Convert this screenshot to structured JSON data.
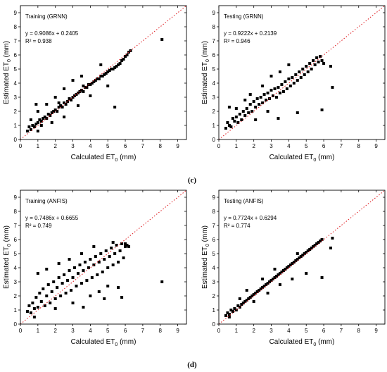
{
  "chart_data": [
    {
      "type": "scatter",
      "panel_title": "Training (GRNN)",
      "equation": "y = 0.9086x + 0.2405",
      "r2": "R² = 0.938",
      "slope": 0.9086,
      "intercept": 0.2405,
      "xlabel": "Calculated ET",
      "ylabel": "Estimated ET",
      "label_subscript": "0",
      "label_unit": "(mm)",
      "xlim": [
        0,
        9.5
      ],
      "ylim": [
        0,
        9.5
      ],
      "ticks": [
        "0",
        "1",
        "2",
        "3",
        "4",
        "5",
        "6",
        "7",
        "8",
        "9"
      ],
      "reference_line": "1:1",
      "grid": false,
      "points": [
        [
          0.4,
          0.6
        ],
        [
          0.5,
          0.9
        ],
        [
          0.6,
          0.7
        ],
        [
          0.7,
          1.0
        ],
        [
          0.8,
          0.9
        ],
        [
          0.9,
          1.1
        ],
        [
          1.0,
          1.2
        ],
        [
          1.1,
          1.4
        ],
        [
          1.2,
          1.3
        ],
        [
          1.3,
          1.5
        ],
        [
          1.4,
          1.6
        ],
        [
          1.5,
          1.5
        ],
        [
          1.6,
          1.8
        ],
        [
          1.7,
          1.7
        ],
        [
          1.8,
          1.9
        ],
        [
          1.9,
          2.0
        ],
        [
          2.0,
          2.1
        ],
        [
          2.1,
          2.0
        ],
        [
          2.2,
          2.3
        ],
        [
          2.3,
          2.4
        ],
        [
          2.4,
          2.3
        ],
        [
          2.5,
          2.6
        ],
        [
          2.6,
          2.5
        ],
        [
          2.7,
          2.7
        ],
        [
          2.8,
          2.9
        ],
        [
          2.9,
          2.8
        ],
        [
          3.0,
          3.0
        ],
        [
          3.1,
          3.1
        ],
        [
          3.2,
          3.2
        ],
        [
          3.3,
          3.3
        ],
        [
          3.4,
          3.4
        ],
        [
          3.5,
          3.5
        ],
        [
          3.6,
          3.4
        ],
        [
          3.7,
          3.7
        ],
        [
          3.8,
          3.7
        ],
        [
          3.9,
          3.9
        ],
        [
          4.0,
          3.9
        ],
        [
          4.1,
          4.0
        ],
        [
          4.2,
          4.1
        ],
        [
          4.3,
          4.2
        ],
        [
          4.4,
          4.3
        ],
        [
          4.5,
          4.3
        ],
        [
          4.6,
          4.5
        ],
        [
          4.7,
          4.5
        ],
        [
          4.8,
          4.6
        ],
        [
          4.9,
          4.7
        ],
        [
          5.0,
          4.8
        ],
        [
          5.1,
          4.9
        ],
        [
          5.2,
          5.0
        ],
        [
          5.3,
          5.0
        ],
        [
          5.4,
          5.1
        ],
        [
          5.5,
          5.2
        ],
        [
          5.6,
          5.3
        ],
        [
          5.7,
          5.4
        ],
        [
          5.8,
          5.6
        ],
        [
          5.9,
          5.7
        ],
        [
          6.0,
          5.9
        ],
        [
          6.1,
          6.0
        ],
        [
          6.2,
          6.2
        ],
        [
          6.3,
          6.3
        ],
        [
          1.0,
          2.0
        ],
        [
          1.5,
          2.5
        ],
        [
          2.0,
          3.0
        ],
        [
          2.5,
          3.6
        ],
        [
          3.0,
          4.2
        ],
        [
          3.5,
          4.5
        ],
        [
          1.0,
          0.6
        ],
        [
          1.8,
          1.2
        ],
        [
          2.5,
          1.6
        ],
        [
          3.3,
          2.4
        ],
        [
          4.0,
          3.1
        ],
        [
          5.0,
          3.8
        ],
        [
          5.4,
          2.3
        ],
        [
          4.6,
          5.3
        ],
        [
          0.6,
          1.4
        ],
        [
          0.9,
          2.5
        ],
        [
          8.1,
          7.1
        ],
        [
          3.6,
          3.8
        ],
        [
          2.2,
          2.6
        ],
        [
          1.2,
          1.0
        ]
      ]
    },
    {
      "type": "scatter",
      "panel_title": "Testing (GRNN)",
      "equation": "y = 0.9222x + 0.2139",
      "r2": "R² = 0.946",
      "slope": 0.9222,
      "intercept": 0.2139,
      "xlabel": "Calculated ET",
      "ylabel": "Estimated ET",
      "label_subscript": "0",
      "label_unit": "(mm)",
      "xlim": [
        0,
        9.5
      ],
      "ylim": [
        0,
        9.5
      ],
      "ticks": [
        "0",
        "1",
        "2",
        "3",
        "4",
        "5",
        "6",
        "7",
        "8",
        "9"
      ],
      "reference_line": "1:1",
      "grid": false,
      "points": [
        [
          0.4,
          0.8
        ],
        [
          0.5,
          1.2
        ],
        [
          0.6,
          1.0
        ],
        [
          0.7,
          0.9
        ],
        [
          0.8,
          1.5
        ],
        [
          0.9,
          1.3
        ],
        [
          1.0,
          1.6
        ],
        [
          1.1,
          1.2
        ],
        [
          1.2,
          1.8
        ],
        [
          1.3,
          1.4
        ],
        [
          1.4,
          2.0
        ],
        [
          1.5,
          1.7
        ],
        [
          1.6,
          2.2
        ],
        [
          1.7,
          1.9
        ],
        [
          1.8,
          2.5
        ],
        [
          1.9,
          2.0
        ],
        [
          2.0,
          2.7
        ],
        [
          2.1,
          2.3
        ],
        [
          2.2,
          2.9
        ],
        [
          2.3,
          2.5
        ],
        [
          2.4,
          3.0
        ],
        [
          2.5,
          2.6
        ],
        [
          2.6,
          3.2
        ],
        [
          2.7,
          2.8
        ],
        [
          2.8,
          3.3
        ],
        [
          2.9,
          2.9
        ],
        [
          3.0,
          3.5
        ],
        [
          3.1,
          3.1
        ],
        [
          3.2,
          3.6
        ],
        [
          3.3,
          3.0
        ],
        [
          3.4,
          3.7
        ],
        [
          3.5,
          3.3
        ],
        [
          3.6,
          3.9
        ],
        [
          3.7,
          3.4
        ],
        [
          3.8,
          4.1
        ],
        [
          3.9,
          3.6
        ],
        [
          4.0,
          4.3
        ],
        [
          4.1,
          3.8
        ],
        [
          4.2,
          4.4
        ],
        [
          4.3,
          4.0
        ],
        [
          4.4,
          4.6
        ],
        [
          4.5,
          4.2
        ],
        [
          4.6,
          4.8
        ],
        [
          4.7,
          4.4
        ],
        [
          4.8,
          5.0
        ],
        [
          4.9,
          4.6
        ],
        [
          5.0,
          5.2
        ],
        [
          5.1,
          4.8
        ],
        [
          5.2,
          5.4
        ],
        [
          5.3,
          5.0
        ],
        [
          5.4,
          5.6
        ],
        [
          5.5,
          5.3
        ],
        [
          5.6,
          5.8
        ],
        [
          5.7,
          5.5
        ],
        [
          5.8,
          5.9
        ],
        [
          5.9,
          5.6
        ],
        [
          6.0,
          5.4
        ],
        [
          6.4,
          5.2
        ],
        [
          6.5,
          3.7
        ],
        [
          5.9,
          2.1
        ],
        [
          4.5,
          1.9
        ],
        [
          3.4,
          1.5
        ],
        [
          2.8,
          2.0
        ],
        [
          2.1,
          1.4
        ],
        [
          1.5,
          2.8
        ],
        [
          1.0,
          2.2
        ],
        [
          2.5,
          3.8
        ],
        [
          3.0,
          4.5
        ],
        [
          3.5,
          4.8
        ],
        [
          4.0,
          5.3
        ],
        [
          1.8,
          3.2
        ],
        [
          0.6,
          2.3
        ]
      ]
    },
    {
      "type": "scatter",
      "panel_title": "Training (ANFIS)",
      "equation": "y = 0.7486x + 0.6655",
      "r2": "R² = 0.749",
      "slope": 0.7486,
      "intercept": 0.6655,
      "xlabel": "Calculated ET",
      "ylabel": "Estimated ET",
      "label_subscript": "0",
      "label_unit": "(mm)",
      "xlim": [
        0,
        9.5
      ],
      "ylim": [
        0,
        9.5
      ],
      "ticks": [
        "0",
        "1",
        "2",
        "3",
        "4",
        "5",
        "6",
        "7",
        "8",
        "9"
      ],
      "reference_line": "1:1",
      "grid": false,
      "points": [
        [
          0.4,
          0.9
        ],
        [
          0.5,
          1.3
        ],
        [
          0.6,
          0.8
        ],
        [
          0.7,
          1.5
        ],
        [
          0.8,
          1.1
        ],
        [
          0.9,
          1.9
        ],
        [
          1.0,
          1.2
        ],
        [
          1.1,
          2.2
        ],
        [
          1.2,
          1.6
        ],
        [
          1.3,
          2.5
        ],
        [
          1.4,
          1.3
        ],
        [
          1.5,
          2.0
        ],
        [
          1.6,
          2.8
        ],
        [
          1.7,
          1.5
        ],
        [
          1.8,
          2.3
        ],
        [
          1.9,
          3.0
        ],
        [
          2.0,
          1.8
        ],
        [
          2.1,
          2.6
        ],
        [
          2.2,
          3.3
        ],
        [
          2.3,
          2.0
        ],
        [
          2.4,
          2.9
        ],
        [
          2.5,
          3.5
        ],
        [
          2.6,
          2.2
        ],
        [
          2.7,
          3.1
        ],
        [
          2.8,
          3.8
        ],
        [
          2.9,
          2.4
        ],
        [
          3.0,
          3.3
        ],
        [
          3.1,
          4.0
        ],
        [
          3.2,
          2.7
        ],
        [
          3.3,
          3.6
        ],
        [
          3.4,
          4.2
        ],
        [
          3.5,
          2.9
        ],
        [
          3.6,
          3.8
        ],
        [
          3.7,
          4.4
        ],
        [
          3.8,
          3.1
        ],
        [
          3.9,
          4.0
        ],
        [
          4.0,
          4.6
        ],
        [
          4.1,
          3.3
        ],
        [
          4.2,
          4.2
        ],
        [
          4.3,
          4.8
        ],
        [
          4.4,
          3.5
        ],
        [
          4.5,
          4.4
        ],
        [
          4.6,
          5.0
        ],
        [
          4.7,
          3.7
        ],
        [
          4.8,
          4.6
        ],
        [
          4.9,
          5.2
        ],
        [
          5.0,
          4.0
        ],
        [
          5.1,
          4.8
        ],
        [
          5.2,
          5.4
        ],
        [
          5.3,
          4.2
        ],
        [
          5.4,
          5.0
        ],
        [
          5.5,
          5.6
        ],
        [
          5.6,
          4.4
        ],
        [
          5.7,
          5.2
        ],
        [
          5.8,
          5.7
        ],
        [
          5.9,
          4.7
        ],
        [
          6.0,
          5.5
        ],
        [
          6.1,
          5.6
        ],
        [
          6.2,
          5.5
        ],
        [
          2.0,
          1.1
        ],
        [
          3.0,
          1.5
        ],
        [
          4.0,
          2.0
        ],
        [
          4.5,
          2.3
        ],
        [
          5.0,
          2.7
        ],
        [
          5.6,
          2.6
        ],
        [
          5.8,
          1.9
        ],
        [
          1.0,
          3.6
        ],
        [
          1.5,
          3.9
        ],
        [
          2.2,
          4.3
        ],
        [
          2.8,
          4.6
        ],
        [
          3.5,
          5.0
        ],
        [
          4.2,
          5.5
        ],
        [
          5.3,
          5.8
        ],
        [
          6.0,
          5.7
        ],
        [
          8.1,
          3.0
        ],
        [
          0.8,
          0.5
        ],
        [
          3.6,
          1.2
        ],
        [
          4.8,
          1.8
        ]
      ]
    },
    {
      "type": "scatter",
      "panel_title": "Testing (ANFIS)",
      "equation": "y = 0.7724x + 0.6294",
      "r2": "R² = 0.774",
      "slope": 0.7724,
      "intercept": 0.6294,
      "xlabel": "Calculated ET",
      "ylabel": "Estimated ET",
      "label_subscript": "0",
      "label_unit": "(mm)",
      "xlim": [
        0,
        9.5
      ],
      "ylim": [
        0,
        9.5
      ],
      "ticks": [
        "0",
        "1",
        "2",
        "3",
        "4",
        "5",
        "6",
        "7",
        "8",
        "9"
      ],
      "reference_line": "1:1",
      "grid": false,
      "points": [
        [
          0.4,
          0.6
        ],
        [
          0.5,
          0.8
        ],
        [
          0.6,
          0.7
        ],
        [
          0.7,
          1.0
        ],
        [
          0.8,
          0.9
        ],
        [
          0.9,
          1.1
        ],
        [
          1.0,
          1.0
        ],
        [
          1.1,
          1.3
        ],
        [
          1.2,
          1.2
        ],
        [
          1.3,
          1.4
        ],
        [
          1.4,
          1.5
        ],
        [
          1.5,
          1.6
        ],
        [
          1.6,
          1.7
        ],
        [
          1.7,
          1.8
        ],
        [
          1.8,
          1.9
        ],
        [
          1.9,
          2.0
        ],
        [
          2.0,
          2.1
        ],
        [
          2.1,
          2.2
        ],
        [
          2.2,
          2.3
        ],
        [
          2.3,
          2.4
        ],
        [
          2.4,
          2.5
        ],
        [
          2.5,
          2.6
        ],
        [
          2.6,
          2.7
        ],
        [
          2.7,
          2.8
        ],
        [
          2.8,
          2.9
        ],
        [
          2.9,
          3.0
        ],
        [
          3.0,
          3.1
        ],
        [
          3.1,
          3.2
        ],
        [
          3.2,
          3.3
        ],
        [
          3.3,
          3.4
        ],
        [
          3.4,
          3.5
        ],
        [
          3.5,
          3.6
        ],
        [
          3.6,
          3.7
        ],
        [
          3.7,
          3.8
        ],
        [
          3.8,
          3.9
        ],
        [
          3.9,
          4.0
        ],
        [
          4.0,
          4.1
        ],
        [
          4.1,
          4.2
        ],
        [
          4.2,
          4.3
        ],
        [
          4.3,
          4.4
        ],
        [
          4.4,
          4.5
        ],
        [
          4.5,
          4.6
        ],
        [
          4.6,
          4.7
        ],
        [
          4.7,
          4.8
        ],
        [
          4.8,
          4.9
        ],
        [
          4.9,
          5.0
        ],
        [
          5.0,
          5.1
        ],
        [
          5.1,
          5.2
        ],
        [
          5.2,
          5.3
        ],
        [
          5.3,
          5.4
        ],
        [
          5.4,
          5.5
        ],
        [
          5.5,
          5.6
        ],
        [
          5.6,
          5.7
        ],
        [
          5.7,
          5.8
        ],
        [
          5.8,
          5.9
        ],
        [
          5.9,
          6.0
        ],
        [
          6.5,
          6.1
        ],
        [
          6.4,
          5.4
        ],
        [
          5.9,
          3.3
        ],
        [
          5.0,
          3.6
        ],
        [
          4.2,
          3.2
        ],
        [
          3.5,
          2.8
        ],
        [
          2.8,
          2.2
        ],
        [
          2.0,
          1.6
        ],
        [
          1.2,
          1.8
        ],
        [
          1.6,
          2.4
        ],
        [
          2.5,
          3.2
        ],
        [
          3.2,
          3.9
        ],
        [
          0.6,
          0.5
        ],
        [
          4.5,
          5.0
        ]
      ]
    }
  ],
  "figure_labels": [
    "(c)",
    "(d)"
  ]
}
